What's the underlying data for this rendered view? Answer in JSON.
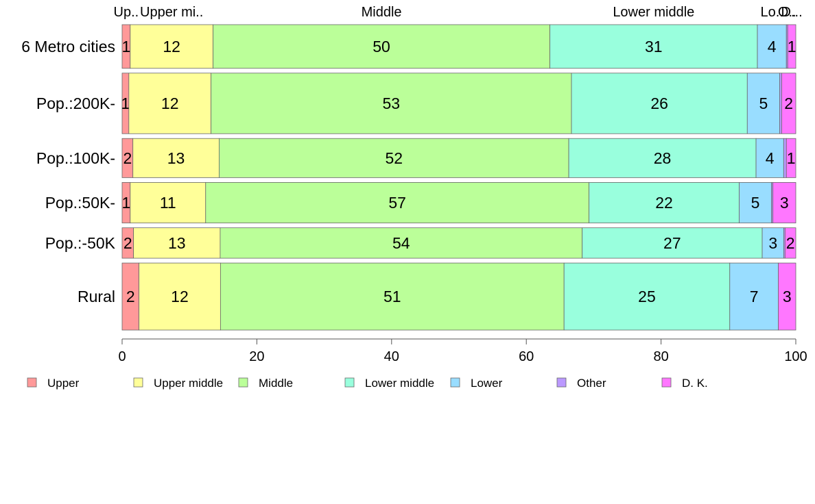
{
  "chart_data": {
    "type": "bar",
    "orientation": "horizontal",
    "stacked": true,
    "title": "",
    "xlabel": "",
    "ylabel": "",
    "xlim": [
      0,
      100
    ],
    "x_ticks": [
      "0",
      "20",
      "40",
      "60",
      "80",
      "100"
    ],
    "legend_position": "bottom",
    "grid": false,
    "top_labels": [
      "Up..",
      "Upper mi..",
      "Middle",
      "Lower middle",
      "Lo..",
      "O..",
      "D..."
    ],
    "categories": [
      "6 Metro cities",
      "Pop.:200K-",
      "Pop.:100K-",
      "Pop.:50K-",
      "Pop.:-50K",
      "Rural"
    ],
    "bar_weights": [
      0.155,
      0.215,
      0.139,
      0.144,
      0.108,
      0.238
    ],
    "series": [
      {
        "name": "Upper",
        "color": "#ff9999",
        "values": [
          1.2,
          1.0,
          1.6,
          1.2,
          1.7,
          2.5
        ],
        "labels": [
          "1",
          "1",
          "2",
          "1",
          "2",
          "2"
        ]
      },
      {
        "name": "Upper middle",
        "color": "#ffff99",
        "values": [
          12.3,
          12.2,
          12.8,
          11.2,
          12.9,
          12.1
        ],
        "labels": [
          "12",
          "12",
          "13",
          "11",
          "13",
          "12"
        ]
      },
      {
        "name": "Middle",
        "color": "#bbff99",
        "values": [
          50.0,
          53.5,
          51.9,
          56.9,
          53.9,
          51.0
        ],
        "labels": [
          "50",
          "53",
          "52",
          "57",
          "54",
          "51"
        ]
      },
      {
        "name": "Lower middle",
        "color": "#99ffdd",
        "values": [
          30.8,
          26.1,
          27.8,
          22.3,
          26.8,
          24.6
        ],
        "labels": [
          "31",
          "26",
          "28",
          "22",
          "27",
          "25"
        ]
      },
      {
        "name": "Lower",
        "color": "#99ddff",
        "values": [
          4.3,
          4.8,
          4.1,
          4.8,
          3.2,
          7.2
        ],
        "labels": [
          "4",
          "5",
          "4",
          "5",
          "3",
          "7"
        ]
      },
      {
        "name": "Other",
        "color": "#bb99ff",
        "values": [
          0.2,
          0.3,
          0.4,
          0.2,
          0.2,
          0.0
        ],
        "labels": [
          "",
          "",
          "",
          "",
          "",
          ""
        ]
      },
      {
        "name": "D. K.",
        "color": "#ff77ff",
        "values": [
          1.2,
          2.1,
          1.4,
          3.4,
          1.6,
          2.6
        ],
        "labels": [
          "1",
          "2",
          "1",
          "3",
          "2",
          "3"
        ]
      }
    ]
  }
}
